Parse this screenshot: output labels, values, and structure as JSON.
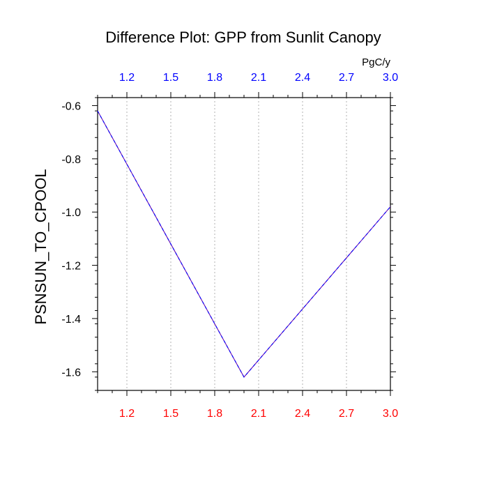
{
  "chart_data": {
    "type": "line",
    "title": "Difference Plot: GPP from Sunlit Canopy",
    "ylabel": "PSNSUN_TO_CPOOL",
    "top_axis_unit": "PgC/y",
    "x": [
      1.0,
      2.0,
      3.0
    ],
    "series": [
      {
        "values": [
          -0.62,
          -1.62,
          -0.98
        ]
      }
    ],
    "xlim": [
      1.0,
      3.0
    ],
    "ylim": [
      -1.67,
      -0.57
    ],
    "x_ticks": [
      1.2,
      1.5,
      1.8,
      2.1,
      2.4,
      2.7,
      3.0
    ],
    "x_tick_labels": [
      "1.2",
      "1.5",
      "1.8",
      "2.1",
      "2.4",
      "2.7",
      "3.0"
    ],
    "y_ticks": [
      -0.6,
      -0.8,
      -1.0,
      -1.2,
      -1.4,
      -1.6
    ],
    "y_tick_labels": [
      "-0.6",
      "-0.8",
      "-1.0",
      "-1.2",
      "-1.4",
      "-1.6"
    ],
    "grid": "vertical dotted",
    "colors": {
      "line": "#6a0dad",
      "line_dash": "#0000ff",
      "bottom_ticks": "#ff0000",
      "top_ticks": "#0000ff",
      "grid": "#b0b0b0",
      "axes": "#000000"
    }
  }
}
